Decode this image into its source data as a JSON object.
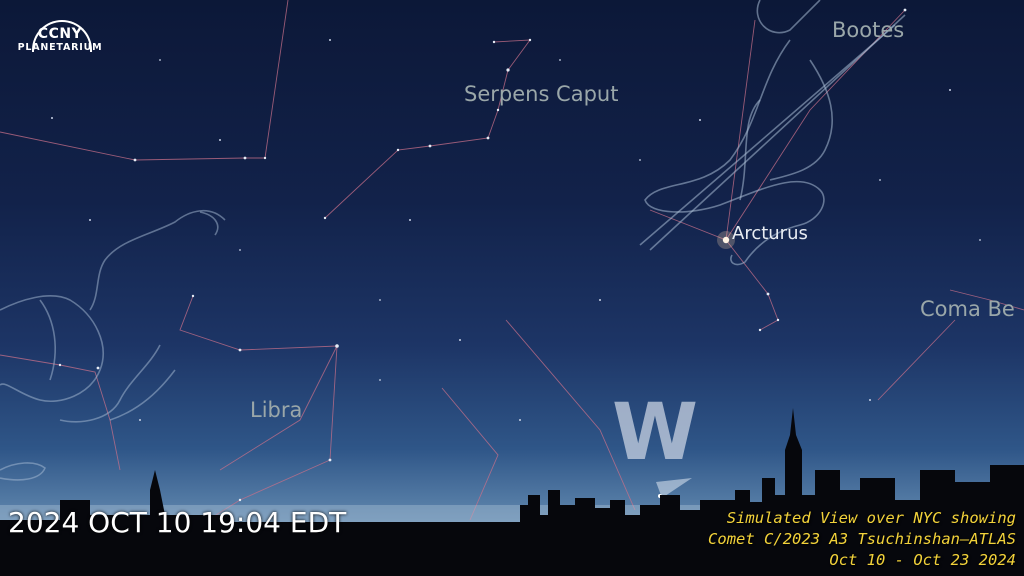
{
  "logo": {
    "line1": "CCNY",
    "line2": "PLANETARIUM"
  },
  "constellations": {
    "serpens_caput": "Serpens Caput",
    "bootes": "Bootes",
    "coma": "Coma Be",
    "libra": "Libra"
  },
  "stars": {
    "arcturus": "Arcturus"
  },
  "compass": {
    "direction": "W"
  },
  "timestamp": "2024 OCT 10 19:04 EDT",
  "caption": {
    "line1": "Simulated View over NYC showing",
    "line2": "Comet C/2023 A3 Tsuchinshan—ATLAS",
    "line3": "Oct 10 - Oct 23 2024"
  },
  "colors": {
    "sky_top": "#0c1838",
    "horizon": "#8fb0cc",
    "constellation_line": "#c8708a",
    "caption_text": "#f2d23a"
  }
}
